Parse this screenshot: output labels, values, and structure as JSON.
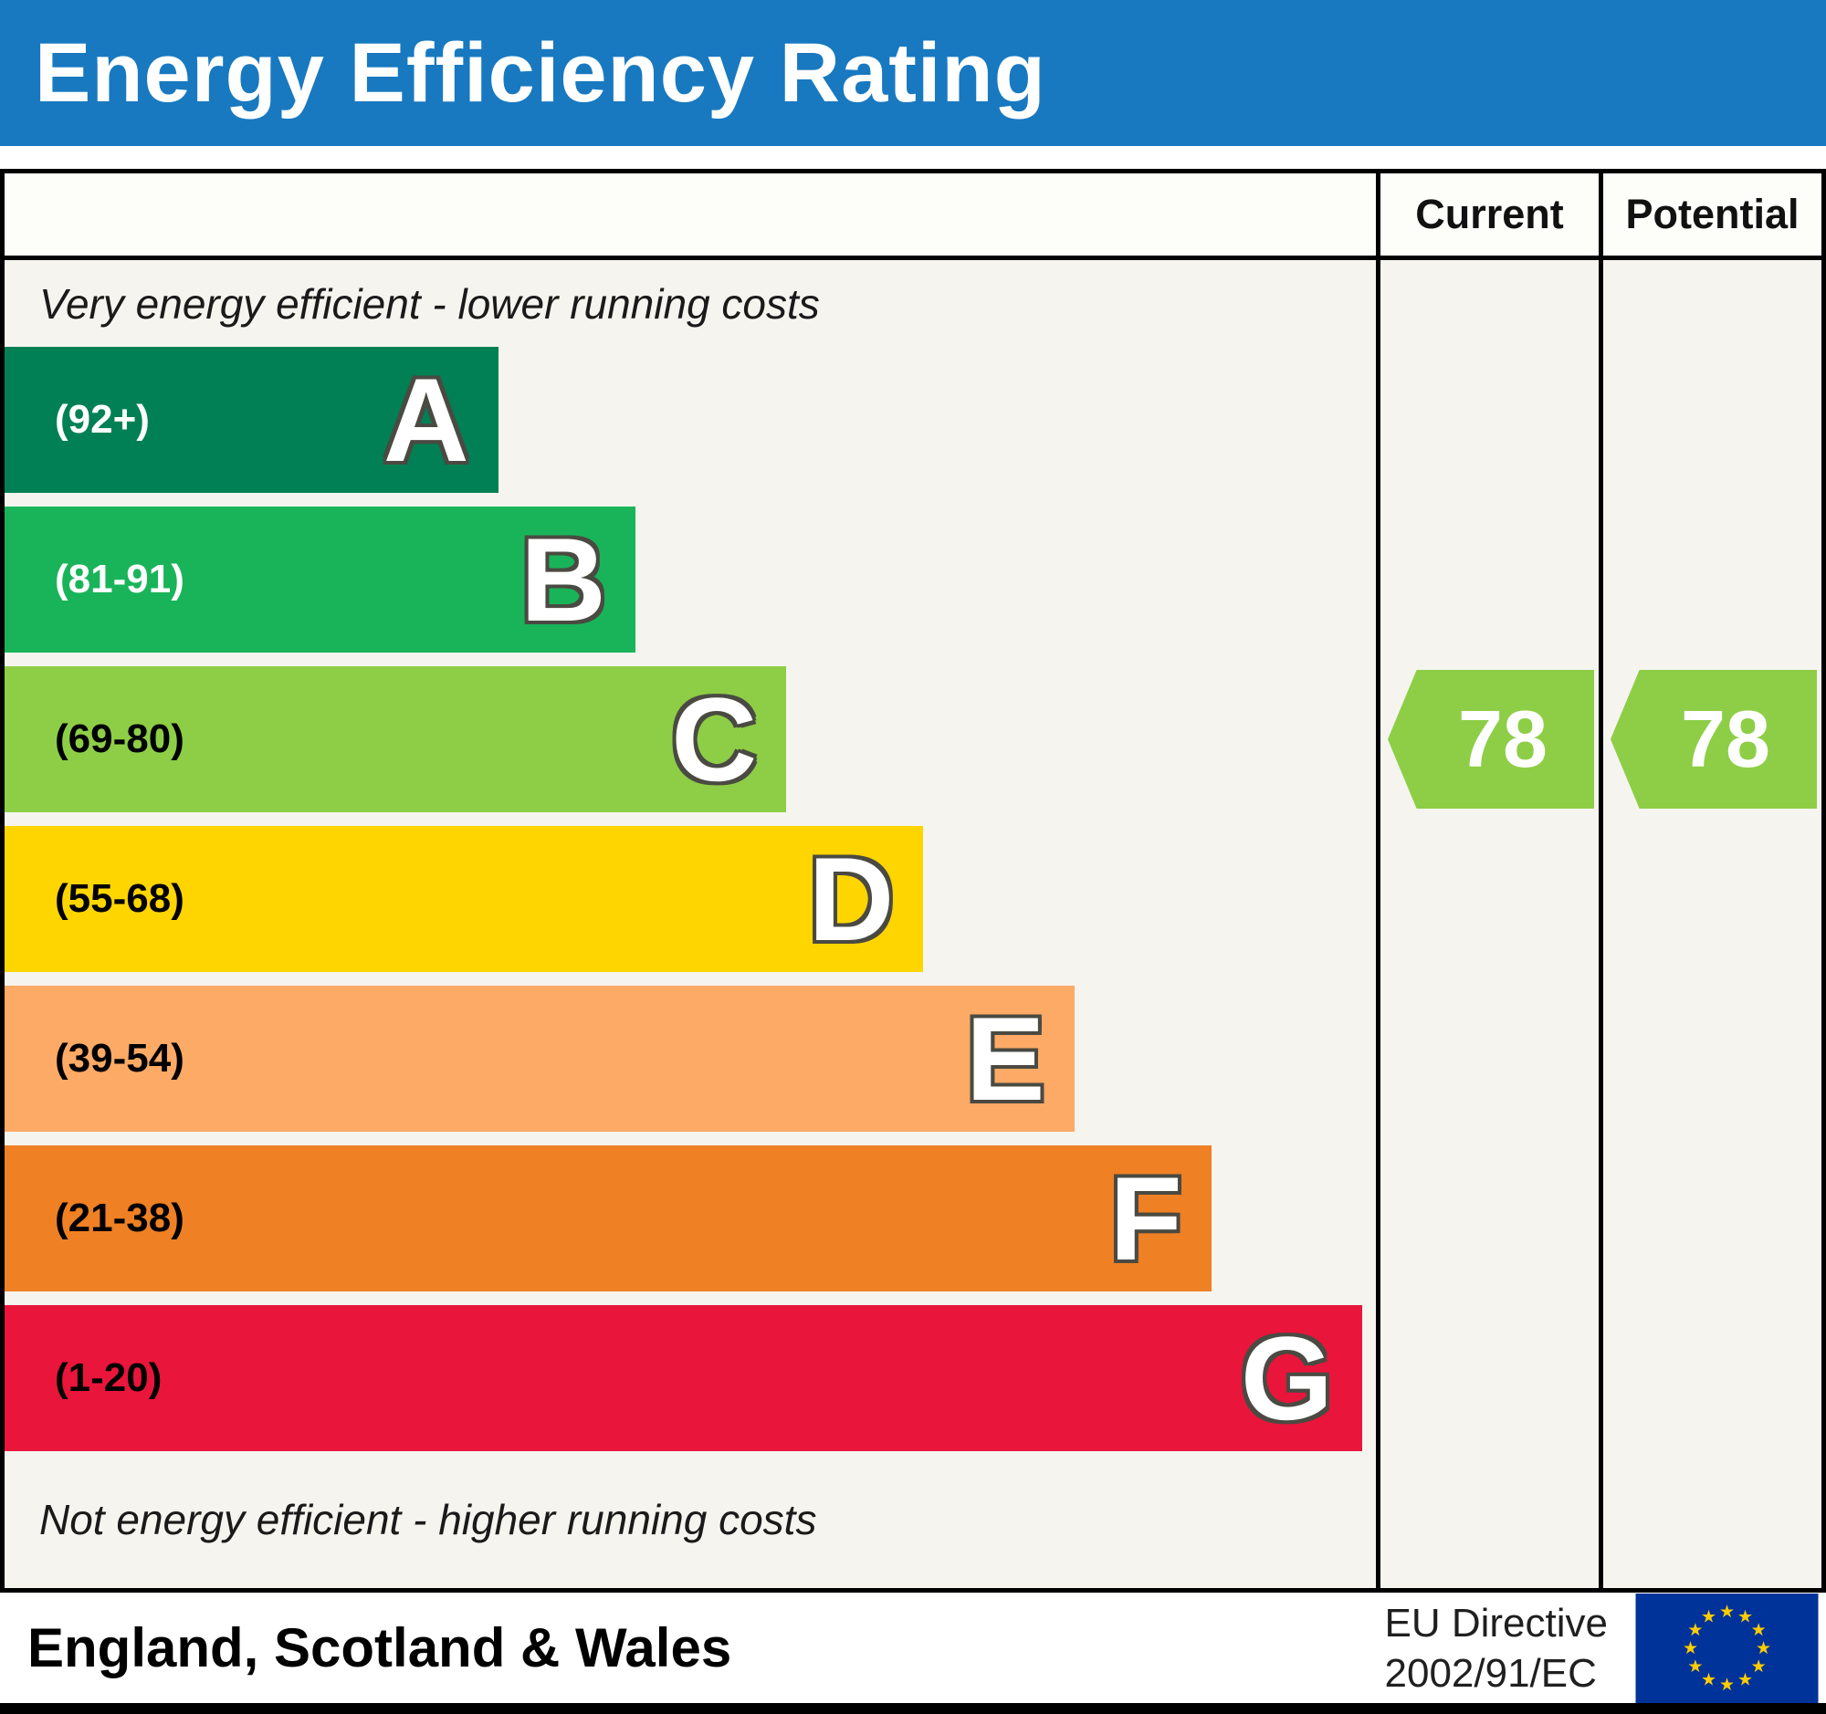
{
  "title": "Energy Efficiency Rating",
  "columns": {
    "current": "Current",
    "potential": "Potential"
  },
  "notes": {
    "top": "Very energy efficient - lower running costs",
    "bottom": "Not energy efficient - higher running costs"
  },
  "footer": {
    "region": "England, Scotland & Wales",
    "directive_line1": "EU Directive",
    "directive_line2": "2002/91/EC",
    "flag_icon": "eu-flag"
  },
  "colors": {
    "header_bg": "#1879c0",
    "table_bg": "#f5f4ee",
    "arrow_green": "#8dce46"
  },
  "chart_data": {
    "type": "bar",
    "title": "Energy Efficiency Rating",
    "xlabel": "",
    "ylabel": "",
    "legend_position": "top-right-columns",
    "grid": false,
    "bands": [
      {
        "letter": "A",
        "range_label": "(92+)",
        "min": 92,
        "max": 100,
        "color": "#008054",
        "text_color": "#ffffff",
        "width_pct": 36
      },
      {
        "letter": "B",
        "range_label": "(81-91)",
        "min": 81,
        "max": 91,
        "color": "#19b459",
        "text_color": "#ffffff",
        "width_pct": 46
      },
      {
        "letter": "C",
        "range_label": "(69-80)",
        "min": 69,
        "max": 80,
        "color": "#8dce46",
        "text_color": "#000000",
        "width_pct": 57
      },
      {
        "letter": "D",
        "range_label": "(55-68)",
        "min": 55,
        "max": 68,
        "color": "#ffd500",
        "text_color": "#000000",
        "width_pct": 67
      },
      {
        "letter": "E",
        "range_label": "(39-54)",
        "min": 39,
        "max": 54,
        "color": "#fcaa65",
        "text_color": "#000000",
        "width_pct": 78
      },
      {
        "letter": "F",
        "range_label": "(21-38)",
        "min": 21,
        "max": 38,
        "color": "#ef8023",
        "text_color": "#000000",
        "width_pct": 88
      },
      {
        "letter": "G",
        "range_label": "(1-20)",
        "min": 1,
        "max": 20,
        "color": "#e9153b",
        "text_color": "#000000",
        "width_pct": 99
      }
    ],
    "current": {
      "label": "Current",
      "value": 78,
      "band": "C",
      "color": "#8dce46"
    },
    "potential": {
      "label": "Potential",
      "value": 78,
      "band": "C",
      "color": "#8dce46"
    }
  }
}
